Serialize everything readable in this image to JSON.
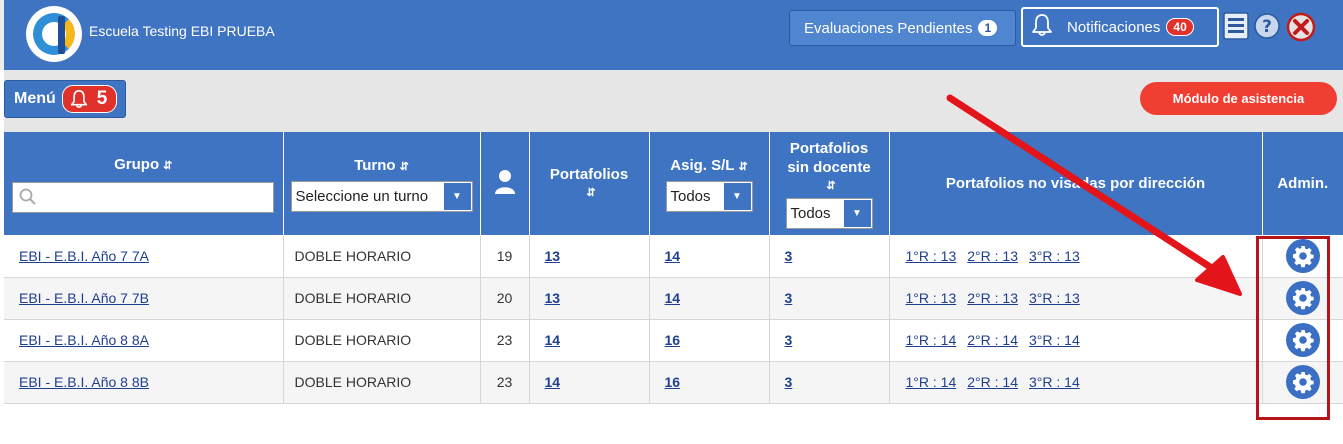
{
  "header": {
    "school_name": "Escuela Testing EBI PRUEBA",
    "eval_label": "Evaluaciones Pendientes",
    "eval_count": "1",
    "notif_label": "Notificaciones",
    "notif_count": "40",
    "icons": [
      "document-list-icon",
      "help-icon",
      "close-icon"
    ]
  },
  "menu": {
    "label": "Menú",
    "count": "5"
  },
  "asistencia_label": "Módulo de asistencia",
  "table": {
    "headers": {
      "grupo": "Grupo",
      "turno": "Turno",
      "portafolios": "Portafolios",
      "asig": "Asig. S/L",
      "sin_docente_1": "Portafolios",
      "sin_docente_2": "sin docente",
      "no_visadas": "Portafolios no visadas por dirección",
      "admin": "Admin."
    },
    "turno_select": "Seleccione un turno",
    "asig_select": "Todos",
    "sin_docente_select": "Todos",
    "rows": [
      {
        "grupo": "EBI - E.B.I. Año 7 7A",
        "turno": "DOBLE HORARIO",
        "alumnos": "19",
        "portafolios": "13",
        "asig": "14",
        "sin_docente": "3",
        "r1": "1°R : 13",
        "r2": "2°R : 13",
        "r3": "3°R : 13"
      },
      {
        "grupo": "EBI - E.B.I. Año 7 7B",
        "turno": "DOBLE HORARIO",
        "alumnos": "20",
        "portafolios": "13",
        "asig": "14",
        "sin_docente": "3",
        "r1": "1°R : 13",
        "r2": "2°R : 13",
        "r3": "3°R : 13"
      },
      {
        "grupo": "EBI - E.B.I. Año 8 8A",
        "turno": "DOBLE HORARIO",
        "alumnos": "23",
        "portafolios": "14",
        "asig": "16",
        "sin_docente": "3",
        "r1": "1°R : 14",
        "r2": "2°R : 14",
        "r3": "3°R : 14"
      },
      {
        "grupo": "EBI - E.B.I. Año 8 8B",
        "turno": "DOBLE HORARIO",
        "alumnos": "23",
        "portafolios": "14",
        "asig": "16",
        "sin_docente": "3",
        "r1": "1°R : 14",
        "r2": "2°R : 14",
        "r3": "3°R : 14"
      }
    ]
  },
  "colors": {
    "brand": "#3e74c1",
    "alert": "#e0322a",
    "annotation": "#e3141a"
  }
}
